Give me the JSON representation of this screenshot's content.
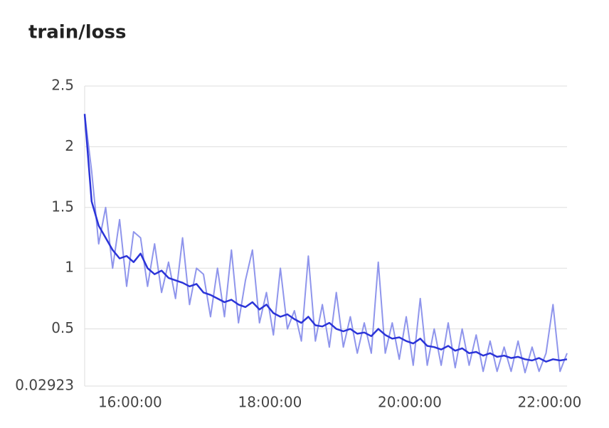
{
  "chart_data": {
    "type": "line",
    "title": "train/loss",
    "x": [
      "15:21:00",
      "15:27:00",
      "15:33:00",
      "15:39:00",
      "15:45:00",
      "15:51:00",
      "15:57:00",
      "16:03:00",
      "16:09:00",
      "16:15:00",
      "16:21:00",
      "16:27:00",
      "16:33:00",
      "16:39:00",
      "16:45:00",
      "16:51:00",
      "16:57:00",
      "17:03:00",
      "17:09:00",
      "17:15:00",
      "17:21:00",
      "17:27:00",
      "17:33:00",
      "17:39:00",
      "17:45:00",
      "17:51:00",
      "17:57:00",
      "18:03:00",
      "18:09:00",
      "18:15:00",
      "18:21:00",
      "18:27:00",
      "18:33:00",
      "18:39:00",
      "18:45:00",
      "18:51:00",
      "18:57:00",
      "19:03:00",
      "19:09:00",
      "19:15:00",
      "19:21:00",
      "19:27:00",
      "19:33:00",
      "19:39:00",
      "19:45:00",
      "19:51:00",
      "19:57:00",
      "20:03:00",
      "20:09:00",
      "20:15:00",
      "20:21:00",
      "20:27:00",
      "20:33:00",
      "20:39:00",
      "20:45:00",
      "20:51:00",
      "20:57:00",
      "21:03:00",
      "21:09:00",
      "21:15:00",
      "21:21:00",
      "21:27:00",
      "21:33:00",
      "21:39:00",
      "21:45:00",
      "21:51:00",
      "21:57:00",
      "22:03:00",
      "22:09:00",
      "22:15:00"
    ],
    "series": [
      {
        "color": "#8f95ec",
        "values": [
          2.27,
          1.8,
          1.2,
          1.5,
          1.0,
          1.4,
          0.85,
          1.3,
          1.25,
          0.85,
          1.2,
          0.8,
          1.05,
          0.75,
          1.25,
          0.7,
          1.0,
          0.95,
          0.6,
          1.0,
          0.6,
          1.15,
          0.55,
          0.9,
          1.15,
          0.55,
          0.8,
          0.45,
          1.0,
          0.5,
          0.65,
          0.4,
          1.1,
          0.4,
          0.7,
          0.35,
          0.8,
          0.35,
          0.6,
          0.3,
          0.55,
          0.3,
          1.05,
          0.3,
          0.55,
          0.25,
          0.6,
          0.2,
          0.75,
          0.2,
          0.5,
          0.2,
          0.55,
          0.18,
          0.5,
          0.2,
          0.45,
          0.15,
          0.4,
          0.15,
          0.35,
          0.15,
          0.4,
          0.14,
          0.35,
          0.15,
          0.3,
          0.7,
          0.15,
          0.3
        ]
      },
      {
        "color": "#2b34d8",
        "values": [
          2.27,
          1.55,
          1.35,
          1.25,
          1.15,
          1.08,
          1.1,
          1.05,
          1.12,
          1.0,
          0.95,
          0.98,
          0.92,
          0.9,
          0.88,
          0.85,
          0.87,
          0.8,
          0.78,
          0.75,
          0.72,
          0.74,
          0.7,
          0.68,
          0.72,
          0.66,
          0.7,
          0.63,
          0.6,
          0.62,
          0.58,
          0.55,
          0.6,
          0.53,
          0.52,
          0.55,
          0.5,
          0.48,
          0.5,
          0.46,
          0.47,
          0.44,
          0.5,
          0.45,
          0.42,
          0.43,
          0.4,
          0.38,
          0.42,
          0.36,
          0.35,
          0.33,
          0.36,
          0.32,
          0.34,
          0.3,
          0.31,
          0.28,
          0.3,
          0.27,
          0.28,
          0.26,
          0.27,
          0.25,
          0.24,
          0.26,
          0.23,
          0.25,
          0.24,
          0.25
        ]
      }
    ],
    "xlim": [
      "15:21:00",
      "22:15:00"
    ],
    "xticks": [
      "16:00:00",
      "18:00:00",
      "20:00:00",
      "22:00:00"
    ],
    "ylim": [
      0.02923,
      2.5
    ],
    "yticks": [
      0.02923,
      0.5,
      1,
      1.5,
      2,
      2.5
    ],
    "grid": true
  }
}
